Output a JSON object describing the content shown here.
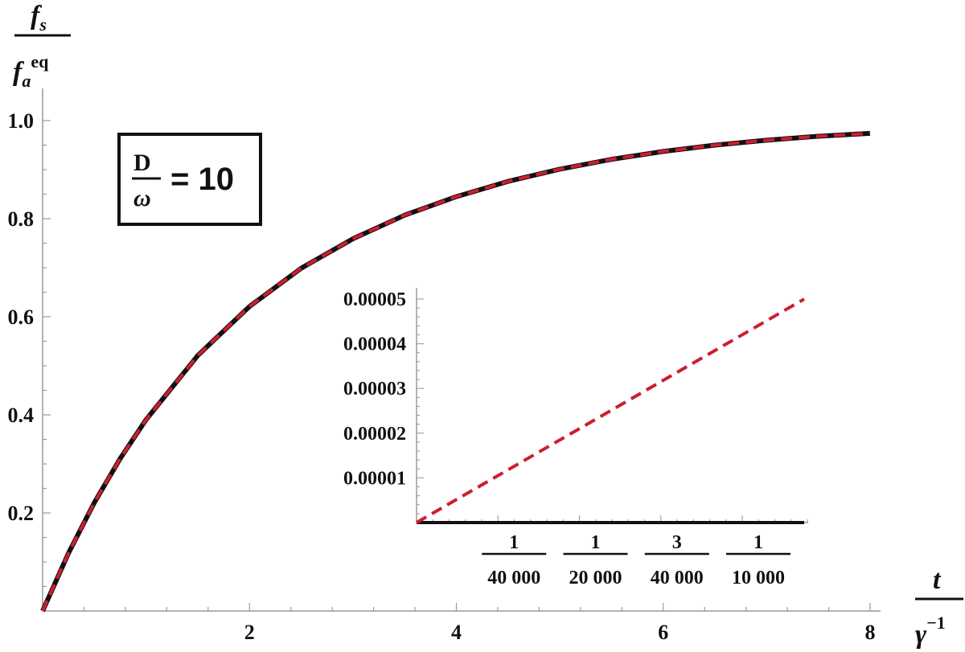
{
  "chart_data": [
    {
      "type": "line",
      "title": "",
      "xlabel": {
        "num": "t",
        "den": "γ",
        "den_sup": "−1"
      },
      "ylabel": {
        "num": "f",
        "num_sub": "s",
        "den": "f",
        "den_sub": "a",
        "den_sup": "eq"
      },
      "xlim": [
        0,
        8.1
      ],
      "ylim": [
        0,
        1.05
      ],
      "x_ticks": [
        {
          "value": 2,
          "label": "2"
        },
        {
          "value": 4,
          "label": "4"
        },
        {
          "value": 6,
          "label": "6"
        },
        {
          "value": 8,
          "label": "8"
        }
      ],
      "y_ticks": [
        {
          "value": 0.2,
          "label": "0.2"
        },
        {
          "value": 0.4,
          "label": "0.4"
        },
        {
          "value": 0.6,
          "label": "0.6"
        },
        {
          "value": 0.8,
          "label": "0.8"
        },
        {
          "value": 1.0,
          "label": "1.0"
        }
      ],
      "grid": false,
      "series": [
        {
          "color": "#111111",
          "style": "solid",
          "x": [
            0,
            0.25,
            0.5,
            0.75,
            1,
            1.5,
            2,
            2.5,
            3,
            3.5,
            4,
            4.5,
            5,
            5.5,
            6,
            6.5,
            7,
            7.5,
            8
          ],
          "y": [
            0,
            0.118,
            0.221,
            0.311,
            0.39,
            0.521,
            0.621,
            0.699,
            0.759,
            0.807,
            0.845,
            0.876,
            0.901,
            0.921,
            0.937,
            0.95,
            0.96,
            0.968,
            0.974
          ]
        },
        {
          "color": "#cc1f2e",
          "style": "dashed",
          "x": [
            0,
            0.25,
            0.5,
            0.75,
            1,
            1.5,
            2,
            2.5,
            3,
            3.5,
            4,
            4.5,
            5,
            5.5,
            6,
            6.5,
            7,
            7.5,
            8
          ],
          "y": [
            0,
            0.118,
            0.221,
            0.311,
            0.39,
            0.521,
            0.621,
            0.699,
            0.759,
            0.807,
            0.845,
            0.876,
            0.901,
            0.921,
            0.937,
            0.95,
            0.96,
            0.968,
            0.974
          ]
        }
      ],
      "annotation": {
        "num": "D",
        "den": "ω",
        "rhs": "= 10"
      }
    },
    {
      "type": "line",
      "title": "",
      "xlabel": "",
      "ylabel": "",
      "xlim": [
        0,
        0.0001197
      ],
      "ylim": [
        0,
        5.25e-05
      ],
      "x_ticks": [
        {
          "value": 2.5e-05,
          "num": "1",
          "den": "40 000"
        },
        {
          "value": 5e-05,
          "num": "1",
          "den": "20 000"
        },
        {
          "value": 7.5e-05,
          "num": "3",
          "den": "40 000"
        },
        {
          "value": 0.0001,
          "num": "1",
          "den": "10 000"
        }
      ],
      "y_ticks": [
        {
          "value": 1e-05,
          "label": "0.00001"
        },
        {
          "value": 2e-05,
          "label": "0.00002"
        },
        {
          "value": 3e-05,
          "label": "0.00003"
        },
        {
          "value": 4e-05,
          "label": "0.00004"
        },
        {
          "value": 5e-05,
          "label": "0.00005"
        }
      ],
      "grid": false,
      "series": [
        {
          "color": "#111111",
          "style": "solid",
          "x": [
            0,
            0.000119
          ],
          "y": [
            0,
            0
          ]
        },
        {
          "color": "#cc1f2e",
          "style": "dashed",
          "x": [
            0,
            0.000119
          ],
          "y": [
            0,
            5e-05
          ]
        }
      ]
    }
  ]
}
